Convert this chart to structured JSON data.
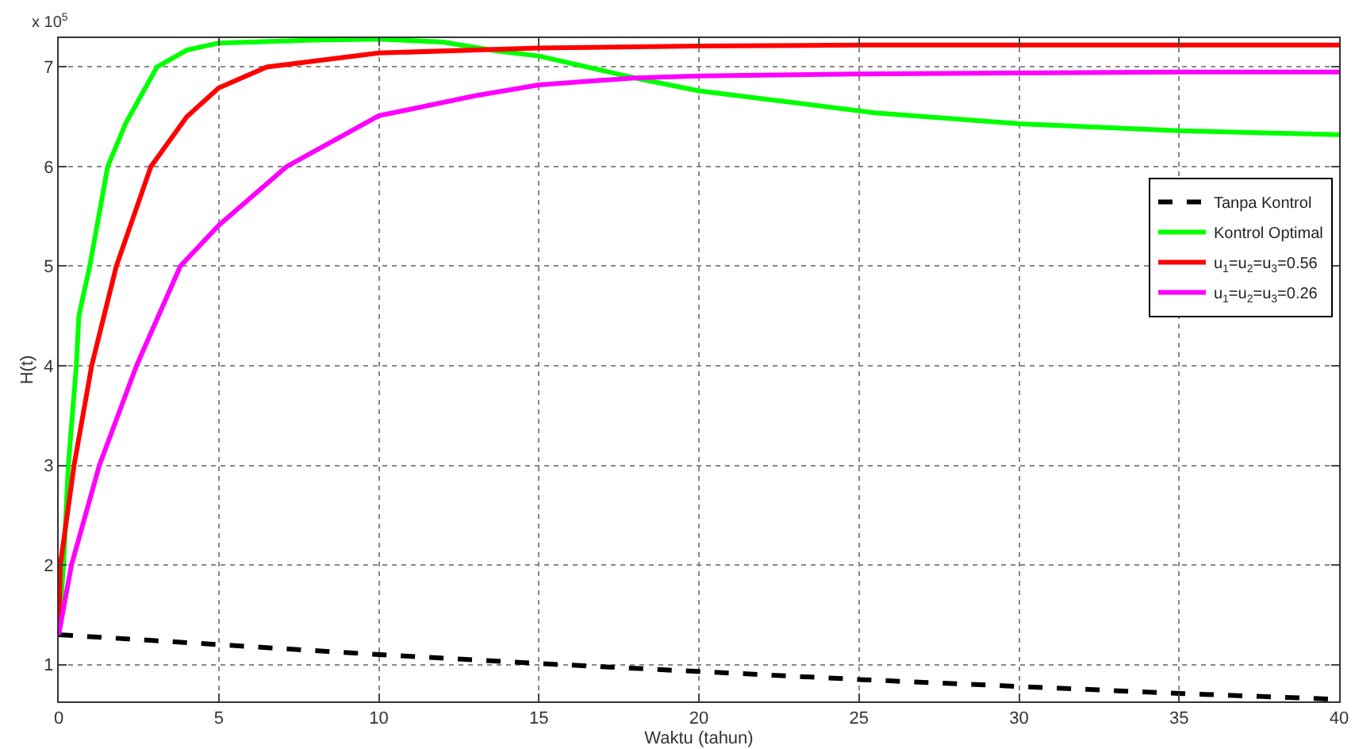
{
  "chart_data": {
    "type": "line",
    "xlabel": "Waktu (tahun)",
    "ylabel": "H(t)",
    "annotations": [
      "x 10$^{5}$"
    ],
    "xlim": [
      0,
      40
    ],
    "xticks": [
      0,
      5,
      10,
      15,
      20,
      25,
      30,
      35,
      40
    ],
    "ylim": [
      0.63,
      7.29
    ],
    "yticks": [
      1,
      2,
      3,
      4,
      5,
      6,
      7
    ],
    "grid": true,
    "legend": "right",
    "marker": "none",
    "series": [
      {
        "name": "Tanpa Kontrol",
        "color": "#000000",
        "line_style": "dashed",
        "x": [
          0,
          5,
          10,
          15,
          20,
          25,
          30,
          35,
          40
        ],
        "values": [
          1.3,
          1.2,
          1.1,
          1.01,
          0.93,
          0.85,
          0.78,
          0.71,
          0.65
        ]
      },
      {
        "name": "Kontrol Optimal",
        "color": "#00ff00",
        "line_style": "solid",
        "x": [
          0,
          0.15,
          0.3,
          0.55,
          0.63,
          0.97,
          1.53,
          2.1,
          3.07,
          4,
          5,
          8,
          10,
          12,
          13.7,
          15,
          18,
          20,
          25.5,
          30,
          35,
          40
        ],
        "values": [
          1.3,
          2,
          3,
          4,
          4.5,
          5,
          6,
          6.44,
          7,
          7.17,
          7.24,
          7.27,
          7.28,
          7.25,
          7.16,
          7.11,
          6.89,
          6.76,
          6.54,
          6.43,
          6.36,
          6.32
        ]
      },
      {
        "name": "u$_{1}$=u$_{2}$=u$_{3}$=0.56",
        "color": "#ff0000",
        "line_style": "solid",
        "x": [
          0,
          0.05,
          0.48,
          1.03,
          1.8,
          2.88,
          4,
          5,
          6.5,
          10,
          15,
          20,
          25,
          30,
          35,
          40
        ],
        "values": [
          1.3,
          2,
          3,
          4,
          5,
          6,
          6.5,
          6.79,
          7,
          7.14,
          7.19,
          7.21,
          7.22,
          7.22,
          7.22,
          7.22
        ]
      },
      {
        "name": "u$_{1}$=u$_{2}$=u$_{3}$=0.26",
        "color": "#ff00ff",
        "line_style": "solid",
        "x": [
          0,
          0.4,
          1.27,
          2.43,
          3.8,
          5,
          7.12,
          10,
          13,
          15,
          18,
          20,
          25,
          30,
          35,
          40
        ],
        "values": [
          1.3,
          2,
          3,
          4,
          5,
          5.41,
          6,
          6.51,
          6.71,
          6.82,
          6.89,
          6.91,
          6.93,
          6.94,
          6.95,
          6.95
        ]
      }
    ]
  }
}
